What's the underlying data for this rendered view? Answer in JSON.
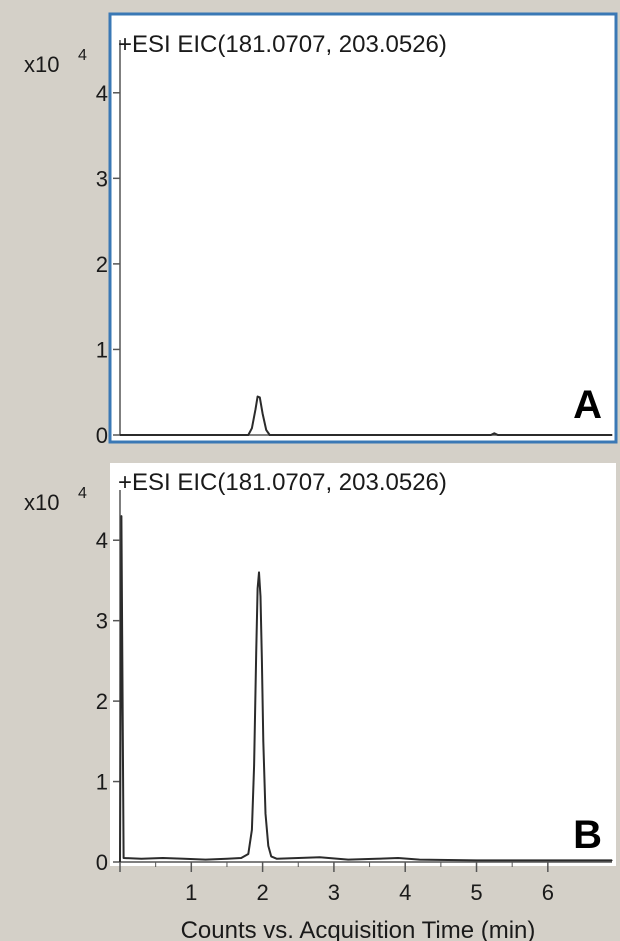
{
  "colors": {
    "window_bg": "#d4d0c8",
    "plot_bg": "#ffffff",
    "selected_border": "#3a78b5",
    "trace": "#2b2b2b"
  },
  "xaxis": {
    "title": "Counts vs. Acquisition Time (min)",
    "ticks": [
      "1",
      "2",
      "3",
      "4",
      "5",
      "6"
    ]
  },
  "panels": [
    {
      "id": "A",
      "panel_label": "A",
      "title": "+ESI  EIC(181.0707,  203.0526)",
      "y_multiplier": "x10",
      "y_exponent": "4",
      "y_ticks": [
        "0",
        "1",
        "2",
        "3",
        "4"
      ],
      "selected": true
    },
    {
      "id": "B",
      "panel_label": "B",
      "title": "+ESI  EIC(181.0707,  203.0526)",
      "y_multiplier": "x10",
      "y_exponent": "4",
      "y_ticks": [
        "0",
        "1",
        "2",
        "3",
        "4"
      ],
      "selected": false
    }
  ],
  "chart_data": [
    {
      "type": "line",
      "title": "+ESI  EIC(181.0707,  203.0526)",
      "panel_label": "A",
      "ylabel": "x10^4",
      "xlim": [
        0,
        6.9
      ],
      "ylim": [
        0,
        4.5
      ],
      "series": [
        {
          "x": [
            0.0,
            1.5,
            1.8,
            1.85,
            1.9,
            1.93,
            1.96,
            2.0,
            2.05,
            2.1,
            2.3,
            5.2,
            5.25,
            5.3,
            6.9
          ],
          "y": [
            0.0,
            0.0,
            0.0,
            0.08,
            0.3,
            0.45,
            0.44,
            0.25,
            0.06,
            0.0,
            0.0,
            0.0,
            0.02,
            0.0,
            0.0
          ]
        }
      ]
    },
    {
      "type": "line",
      "title": "+ESI  EIC(181.0707,  203.0526)",
      "panel_label": "B",
      "ylabel": "x10^4",
      "xlim": [
        0,
        6.9
      ],
      "ylim": [
        0,
        4.5
      ],
      "series": [
        {
          "x": [
            0.0,
            0.02,
            0.05,
            0.3,
            0.6,
            0.9,
            1.2,
            1.5,
            1.7,
            1.8,
            1.85,
            1.88,
            1.91,
            1.93,
            1.95,
            1.97,
            1.99,
            2.01,
            2.04,
            2.08,
            2.12,
            2.2,
            2.5,
            2.8,
            3.2,
            3.6,
            3.9,
            4.2,
            5.0,
            6.0,
            6.9
          ],
          "y": [
            0.0,
            4.3,
            0.05,
            0.04,
            0.05,
            0.04,
            0.03,
            0.04,
            0.05,
            0.1,
            0.4,
            1.2,
            2.6,
            3.4,
            3.6,
            3.3,
            2.5,
            1.5,
            0.6,
            0.2,
            0.07,
            0.04,
            0.05,
            0.06,
            0.03,
            0.04,
            0.05,
            0.03,
            0.02,
            0.02,
            0.02
          ]
        }
      ]
    }
  ]
}
